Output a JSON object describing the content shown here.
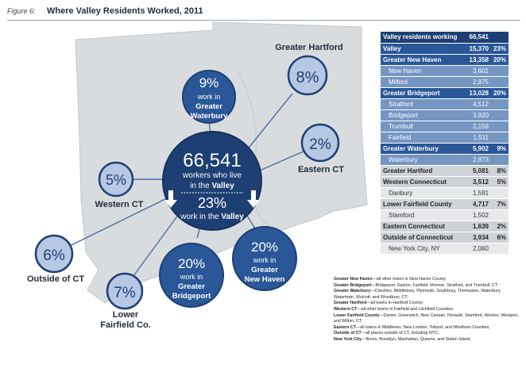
{
  "figure": {
    "number": "Figure 6:",
    "title": "Where Valley Residents Worked, 2011"
  },
  "center": {
    "total": "66,541",
    "line1": "workers who live",
    "line2_pre": "in the",
    "line2_bold": "Valley",
    "pct": "23%",
    "work_pre": "work in the",
    "work_bold": "Valley"
  },
  "destinations": [
    {
      "id": "waterbury",
      "pct": "9%",
      "label": [
        "work in",
        "Greater",
        "Waterbury"
      ],
      "inside_bold_from": 1
    },
    {
      "id": "hartford",
      "pct": "8%",
      "label": [
        "Greater Hartford"
      ]
    },
    {
      "id": "eastern",
      "pct": "2%",
      "label": [
        "Eastern CT"
      ]
    },
    {
      "id": "western",
      "pct": "5%",
      "label": [
        "Western CT"
      ]
    },
    {
      "id": "outside",
      "pct": "6%",
      "label": [
        "Outside of CT"
      ]
    },
    {
      "id": "lowerfairfield",
      "pct": "7%",
      "label": [
        "Lower",
        "Fairfield Co."
      ]
    },
    {
      "id": "bridgeport",
      "pct": "20%",
      "label": [
        "work in",
        "Greater",
        "Bridgeport"
      ],
      "inside_bold_from": 1
    },
    {
      "id": "newhaven",
      "pct": "20%",
      "label": [
        "work in",
        "Greater",
        "New Haven"
      ],
      "inside_bold_from": 1
    }
  ],
  "table": [
    {
      "name": "Valley residents working",
      "value": "66,541",
      "pct": "",
      "style": "head"
    },
    {
      "name": "Valley",
      "value": "15,370",
      "pct": "23%",
      "style": "hl"
    },
    {
      "name": "Greater New Haven",
      "value": "13,358",
      "pct": "20%",
      "style": "hl"
    },
    {
      "name": "New Haven",
      "value": "3,601",
      "pct": "",
      "style": "sub"
    },
    {
      "name": "Milford",
      "value": "2,875",
      "pct": "",
      "style": "sub"
    },
    {
      "name": "Greater Bridgeport",
      "value": "13,028",
      "pct": "20%",
      "style": "hl"
    },
    {
      "name": "Stratford",
      "value": "4,512",
      "pct": "",
      "style": "sub"
    },
    {
      "name": "Bridgeport",
      "value": "3,920",
      "pct": "",
      "style": "sub"
    },
    {
      "name": "Trumbull",
      "value": "2,159",
      "pct": "",
      "style": "sub"
    },
    {
      "name": "Fairfield",
      "value": "1,511",
      "pct": "",
      "style": "sub"
    },
    {
      "name": "Greater Waterbury",
      "value": "5,902",
      "pct": "9%",
      "style": "hl"
    },
    {
      "name": "Waterbury",
      "value": "2,873",
      "pct": "",
      "style": "sub"
    },
    {
      "name": "Greater Hartford",
      "value": "5,081",
      "pct": "8%",
      "style": "gb"
    },
    {
      "name": "Western Connecticut",
      "value": "3,512",
      "pct": "5%",
      "style": "gb"
    },
    {
      "name": "Danbury",
      "value": "1,591",
      "pct": "",
      "style": "gs"
    },
    {
      "name": "Lower Fairfield County",
      "value": "4,717",
      "pct": "7%",
      "style": "gb"
    },
    {
      "name": "Stamford",
      "value": "1,502",
      "pct": "",
      "style": "gs"
    },
    {
      "name": "Eastern Connecticut",
      "value": "1,639",
      "pct": "2%",
      "style": "gb"
    },
    {
      "name": "Outside of Connecticut",
      "value": "3,934",
      "pct": "6%",
      "style": "gb"
    },
    {
      "name": "New York City, NY",
      "value": "2,060",
      "pct": "",
      "style": "gs"
    }
  ],
  "notes": [
    {
      "term": "Greater New Haven",
      "text": "—all other towns in New Haven County;"
    },
    {
      "term": "Greater Bridgeport",
      "text": "—Bridgeport, Easton, Fairfield, Monroe, Stratford, and Trumbull, CT;"
    },
    {
      "term": "Greater Waterbury",
      "text": "—Cheshire, Middlebury, Plymouth, Southbury, Thomaston, Waterbury, Watertown, Wolcott, and Woodbury, CT;"
    },
    {
      "term": "Greater Hartford",
      "text": "—all towns in Hartford County;"
    },
    {
      "term": "Western CT",
      "text": "—all other towns in Fairfield and Litchfield Counties;"
    },
    {
      "term": "Lower Fairfield County",
      "text": "—Darien, Greenwich, New Canaan, Norwalk, Stamford, Weston, Westport, and Wilton, CT;"
    },
    {
      "term": "Eastern CT",
      "text": "—all towns in Middlesex, New London, Tolland, and Windham Counties;"
    },
    {
      "term": "Outside of CT",
      "text": "—all places outside of CT, including NYC;"
    },
    {
      "term": "New York City",
      "text": "—Bronx, Brooklyn, Manhattan, Queens, and Staten Island."
    }
  ],
  "colors": {
    "dark_blue": "#1e3f73",
    "mid_blue": "#2a5797",
    "light_blue": "#b7c8e4",
    "map_gray": "#d9dcdf",
    "connector": "#4a6fa5"
  }
}
